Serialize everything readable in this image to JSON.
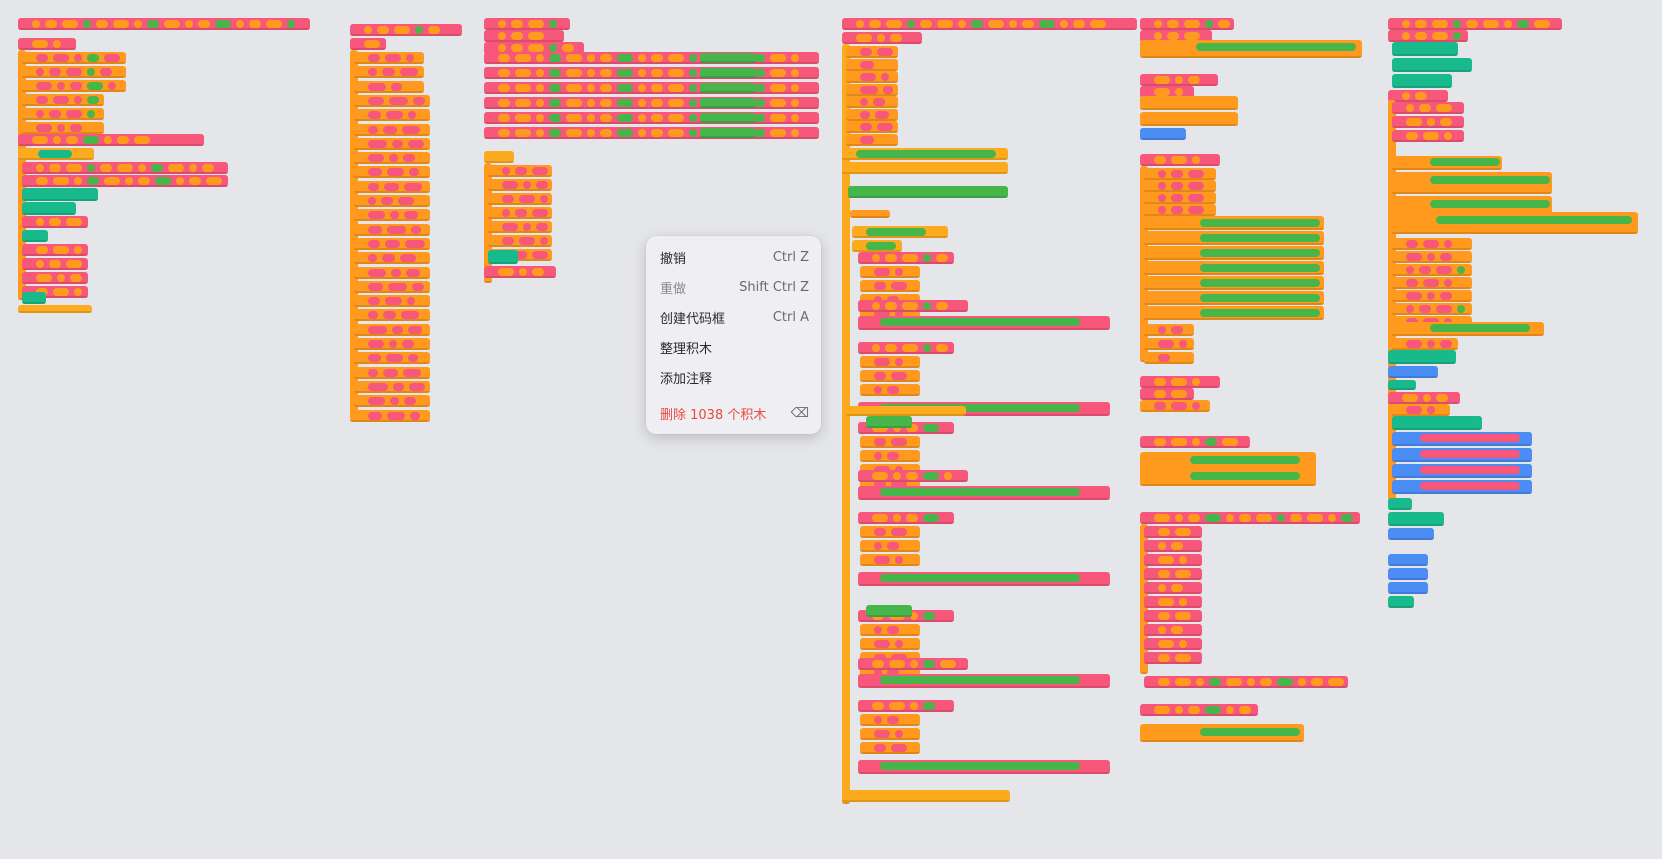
{
  "context_menu": {
    "items": [
      {
        "label": "撤销",
        "shortcut": "Ctrl Z",
        "enabled": true
      },
      {
        "label": "重做",
        "shortcut": "Shift Ctrl Z",
        "enabled": false
      },
      {
        "label": "创建代码框",
        "shortcut": "Ctrl A",
        "enabled": true
      },
      {
        "label": "整理积木",
        "shortcut": "",
        "enabled": true
      },
      {
        "label": "添加注释",
        "shortcut": "",
        "enabled": true
      }
    ],
    "delete_item": {
      "label": "删除 1038 个积木",
      "icon": "backspace-icon"
    }
  },
  "colors": {
    "workspace_bg": "#e5e6ea",
    "pink": "#f7577a",
    "orange": "#ff9a1f",
    "yellow": "#fdab1e",
    "green": "#2db47d",
    "blue": "#4b8df3",
    "danger": "#e8483f"
  }
}
